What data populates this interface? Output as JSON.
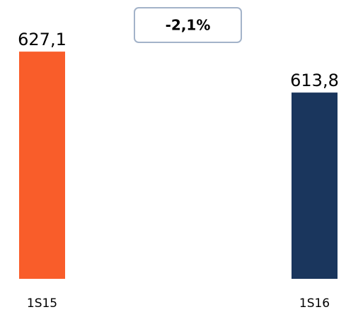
{
  "chart_data": {
    "type": "bar",
    "annotation": "-2,1%",
    "categories": [
      "1S15",
      "1S16"
    ],
    "values": [
      627.1,
      613.8
    ],
    "value_labels": [
      "627,1",
      "613,8"
    ],
    "colors": [
      "#f95d2a",
      "#1a365d"
    ],
    "ylim": [
      553.3,
      632.4
    ]
  }
}
